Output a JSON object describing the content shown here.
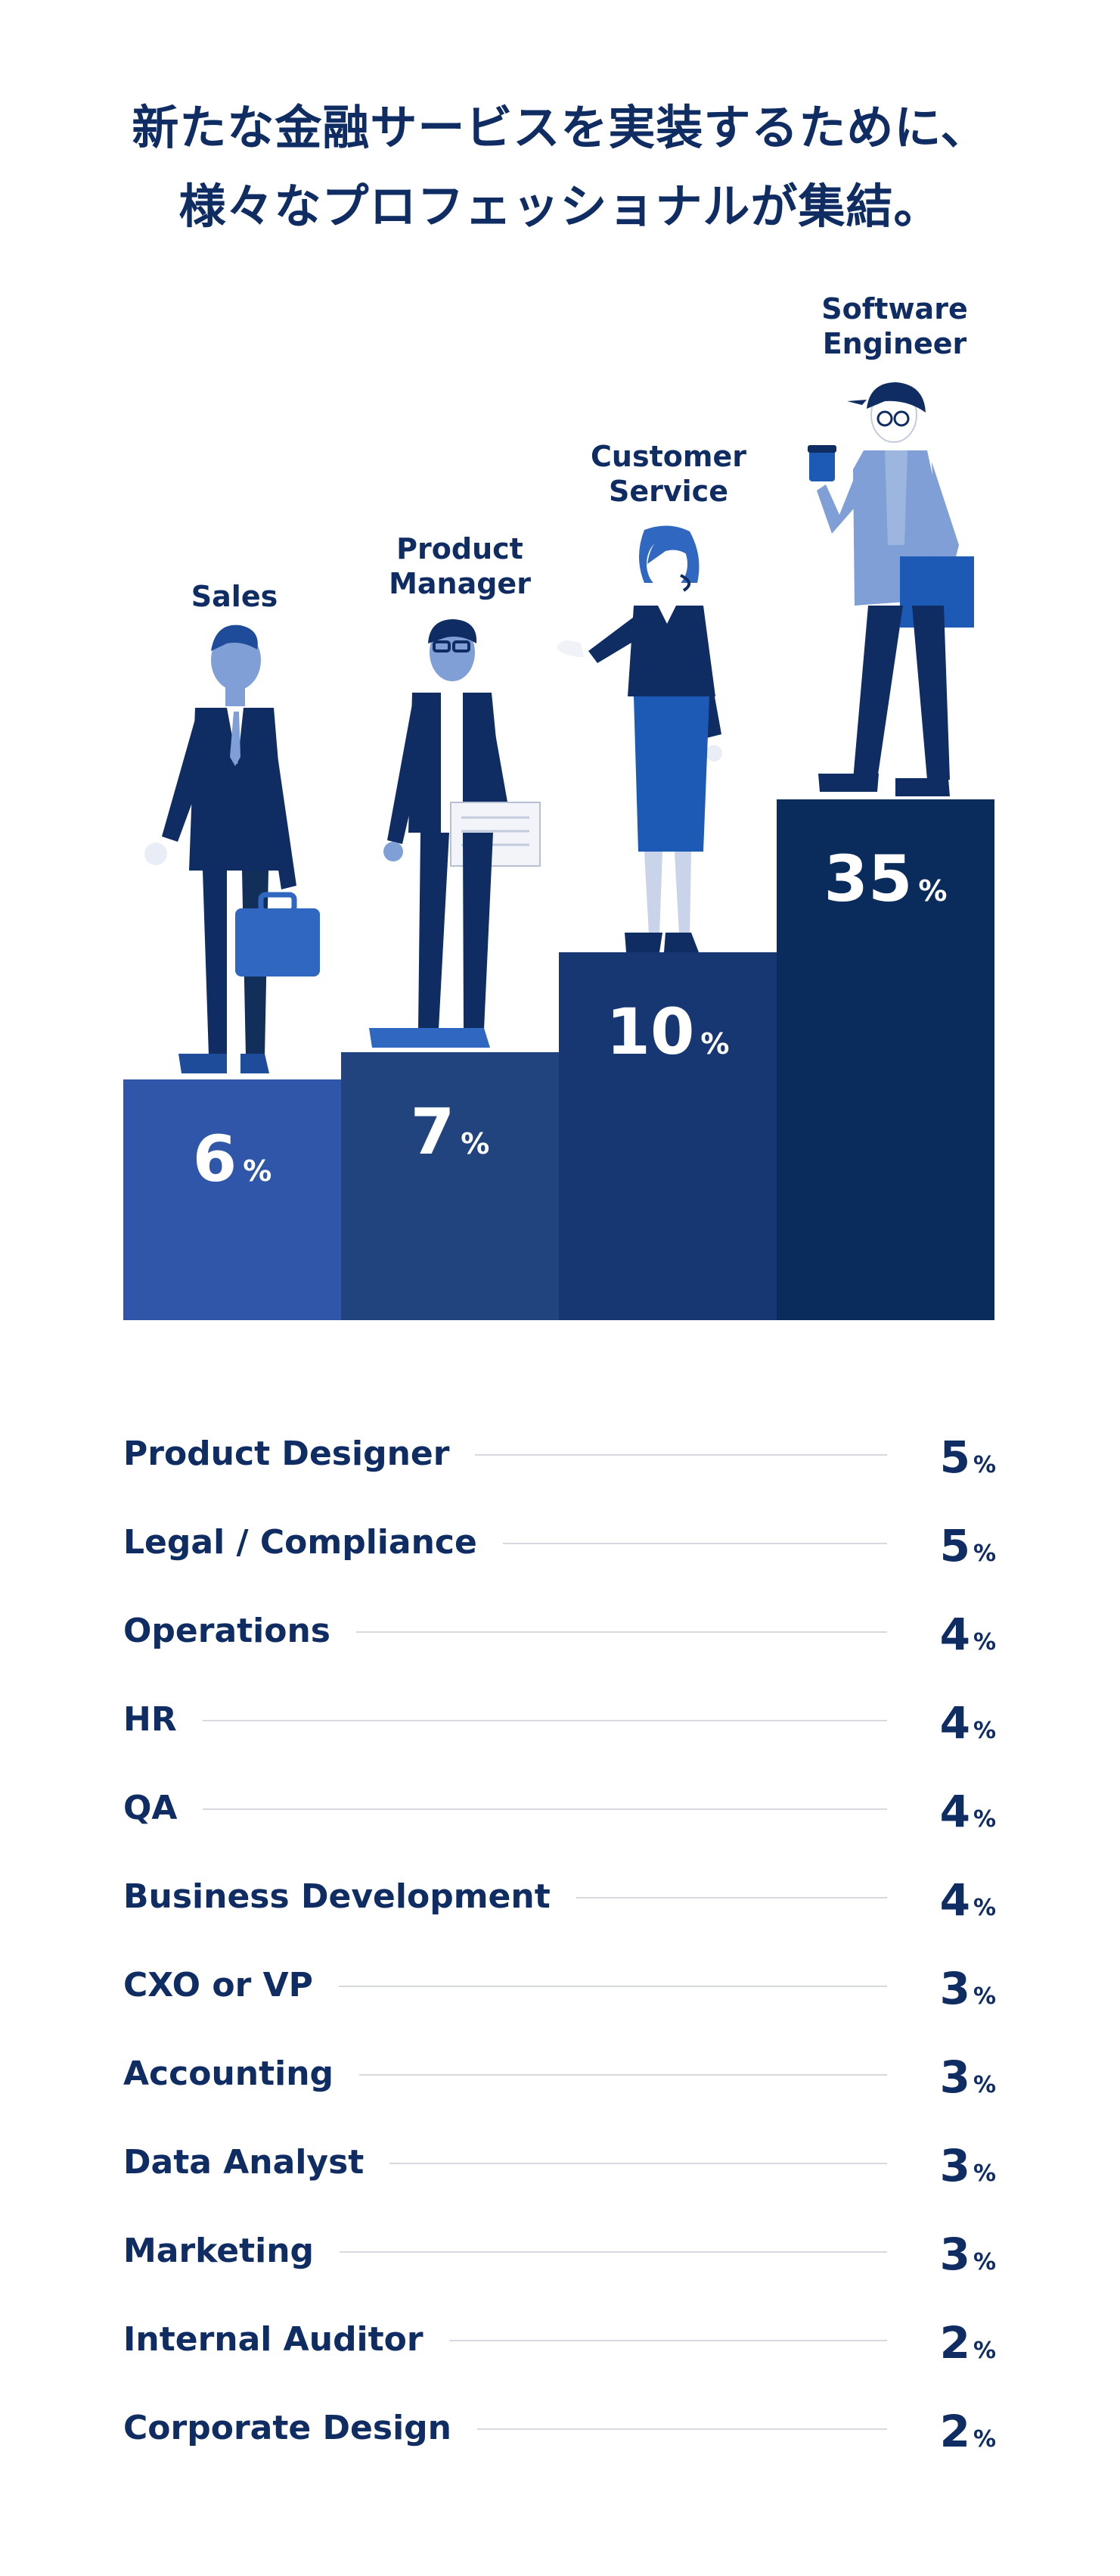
{
  "headline": {
    "line1": "新たな金融サービスを実装するために、",
    "line2": "様々なプロフェッショナルが集結。"
  },
  "chart_data": {
    "type": "bar",
    "title": "",
    "categories": [
      "Sales",
      "Product\nManager",
      "Customer\nService",
      "Software\nEngineer"
    ],
    "values": [
      6,
      7,
      10,
      35
    ],
    "unit": "%",
    "colors": [
      "#2f56a8",
      "#21447f",
      "#163772",
      "#0a2c5c"
    ]
  },
  "other_roles": [
    {
      "label": "Product Designer",
      "value": 5
    },
    {
      "label": "Legal / Compliance",
      "value": 5
    },
    {
      "label": "Operations",
      "value": 4
    },
    {
      "label": "HR",
      "value": 4
    },
    {
      "label": "QA",
      "value": 4
    },
    {
      "label": "Business Development",
      "value": 4
    },
    {
      "label": "CXO or VP",
      "value": 3
    },
    {
      "label": "Accounting",
      "value": 3
    },
    {
      "label": "Data Analyst",
      "value": 3
    },
    {
      "label": "Marketing",
      "value": 3
    },
    {
      "label": "Internal Auditor",
      "value": 2
    },
    {
      "label": "Corporate Design",
      "value": 2
    }
  ],
  "percent_sign": "%",
  "illustrations": [
    "salesperson-icon",
    "product-manager-icon",
    "customer-service-icon",
    "software-engineer-icon"
  ]
}
